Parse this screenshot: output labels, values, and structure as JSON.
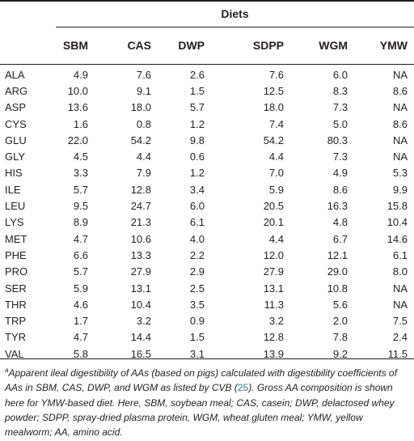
{
  "header": {
    "title": "Diets",
    "columns": [
      "",
      "SBM",
      "CAS",
      "DWP",
      "SDPP",
      "WGM",
      "YMW"
    ]
  },
  "rows": [
    [
      "ALA",
      "4.9",
      "7.6",
      "2.6",
      "7.6",
      "6.0",
      "NA"
    ],
    [
      "ARG",
      "10.0",
      "9.1",
      "1.5",
      "12.5",
      "8.3",
      "8.6"
    ],
    [
      "ASP",
      "13.6",
      "18.0",
      "5.7",
      "18.0",
      "7.3",
      "NA"
    ],
    [
      "CYS",
      "1.6",
      "0.8",
      "1.2",
      "7.4",
      "5.0",
      "8.6"
    ],
    [
      "GLU",
      "22.0",
      "54.2",
      "9.8",
      "54.2",
      "80.3",
      "NA"
    ],
    [
      "GLY",
      "4.5",
      "4.4",
      "0.6",
      "4.4",
      "7.3",
      "NA"
    ],
    [
      "HIS",
      "3.3",
      "7.9",
      "1.2",
      "7.0",
      "4.9",
      "5.3"
    ],
    [
      "ILE",
      "5.7",
      "12.8",
      "3.4",
      "5.9",
      "8.6",
      "9.9"
    ],
    [
      "LEU",
      "9.5",
      "24.7",
      "6.0",
      "20.5",
      "16.3",
      "15.8"
    ],
    [
      "LYS",
      "8.9",
      "21.3",
      "6.1",
      "20.1",
      "4.8",
      "10.4"
    ],
    [
      "MET",
      "4.7",
      "10.6",
      "4.0",
      "4.4",
      "6.7",
      "14.6"
    ],
    [
      "PHE",
      "6.6",
      "13.3",
      "2.2",
      "12.0",
      "12.1",
      "6.1"
    ],
    [
      "PRO",
      "5.7",
      "27.9",
      "2.9",
      "27.9",
      "29.0",
      "8.0"
    ],
    [
      "SER",
      "5.9",
      "13.1",
      "2.5",
      "13.1",
      "10.8",
      "NA"
    ],
    [
      "THR",
      "4.6",
      "10.4",
      "3.5",
      "11.3",
      "5.6",
      "NA"
    ],
    [
      "TRP",
      "1.7",
      "3.2",
      "0.9",
      "3.2",
      "2.0",
      "7.5"
    ],
    [
      "TYR",
      "4.7",
      "14.4",
      "1.5",
      "12.8",
      "7.8",
      "2.4"
    ],
    [
      "VAL",
      "5.8",
      "16.5",
      "3.1",
      "13.9",
      "9.2",
      "11.5"
    ]
  ],
  "footnote": {
    "marker": "a",
    "text_before_ref": "Apparent ileal digestibility of AAs (based on pigs) calculated with digestibility coefficients of AAs in SBM, CAS, DWP, and WGM as listed by CVB (",
    "ref": "25",
    "text_after_ref": "). Gross AA composition is shown here for YMW-based diet. Here, SBM, soybean meal; CAS, casein; DWP, delactosed whey powder; SDPP, spray-dried plasma protein, WGM, wheat gluten meal; YMW, yellow mealworm; AA, amino acid."
  },
  "colors": {
    "text": "#231f20",
    "rules": "#231f20",
    "reference_link": "#2c7d8c"
  }
}
